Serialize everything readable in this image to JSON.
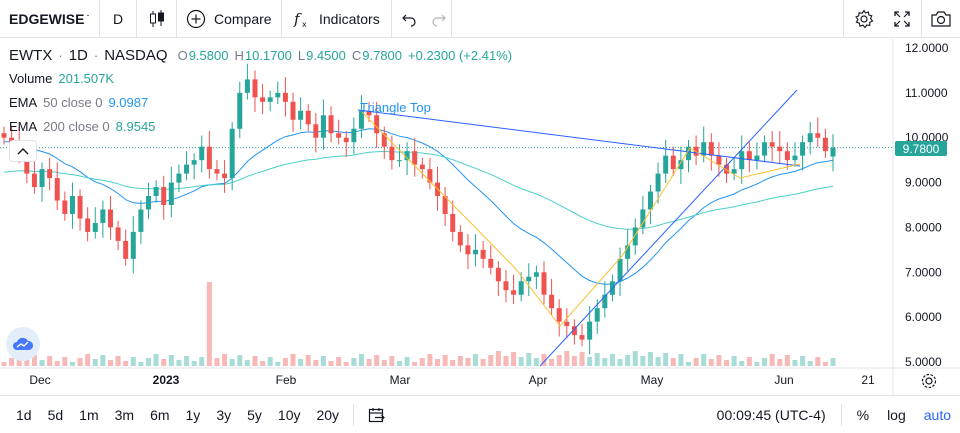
{
  "toolbar": {
    "symbol": "EDGEWISE",
    "interval": "D",
    "chart_type_icon": "candles-icon",
    "compare_label": "Compare",
    "indicators_label": "Indicators",
    "undo_icon": "undo-icon",
    "redo_icon": "redo-icon",
    "settings_icon": "gear-icon",
    "fullscreen_icon": "fullscreen-icon",
    "snapshot_icon": "camera-icon"
  },
  "legend": {
    "symbol": "EWTX",
    "interval": "1D",
    "exchange": "NASDAQ",
    "ohlc": {
      "o_label": "O",
      "o_value": "9.5800",
      "h_label": "H",
      "h_value": "10.1700",
      "l_label": "L",
      "l_value": "9.4500",
      "c_label": "C",
      "c_value": "9.7800",
      "change": "+0.2300 (+2.41%)"
    },
    "volume": {
      "label": "Volume",
      "value": "201.507K"
    },
    "ema50": {
      "label": "EMA",
      "params": "50 close 0",
      "value": "9.0987"
    },
    "ema200": {
      "label": "EMA",
      "params": "200 close 0",
      "value": "8.9545"
    }
  },
  "annotation": {
    "pattern_label": "Triangle Top"
  },
  "price_axis": {
    "ticks": [
      "12.0000",
      "11.0000",
      "10.0000",
      "9.0000",
      "8.0000",
      "7.0000",
      "6.0000",
      "5.0000"
    ],
    "last_price": "9.7800"
  },
  "time_axis": {
    "ticks": [
      "Dec",
      "2023",
      "Feb",
      "Mar",
      "Apr",
      "May",
      "Jun",
      "21"
    ]
  },
  "bottombar": {
    "ranges": [
      "1d",
      "5d",
      "1m",
      "3m",
      "6m",
      "1y",
      "3y",
      "5y",
      "10y",
      "20y"
    ],
    "time": "00:09:45 (UTC-4)",
    "percent_label": "%",
    "log_label": "log",
    "auto_label": "auto"
  },
  "colors": {
    "up": "#26a69a",
    "down": "#ef5350",
    "ema": "#2196f3",
    "pattern": "#fbc02d",
    "trendline": "#2962ff",
    "accent": "#2962ff"
  },
  "chart_data": {
    "type": "candlestick",
    "ylim": [
      5.0,
      12.0
    ],
    "series": [
      {
        "name": "EWTX",
        "close": [
          10.0,
          9.9,
          9.7,
          9.2,
          8.9,
          9.3,
          9.1,
          8.6,
          8.3,
          8.7,
          8.2,
          7.9,
          8.1,
          8.4,
          8.0,
          7.7,
          7.3,
          7.9,
          8.4,
          8.7,
          8.9,
          8.5,
          9.0,
          9.2,
          9.4,
          9.5,
          9.8,
          9.3,
          9.2,
          9.1,
          10.2,
          11.0,
          11.3,
          10.9,
          10.8,
          10.9,
          11.0,
          10.8,
          10.4,
          10.6,
          10.3,
          10.0,
          10.5,
          10.1,
          10.0,
          9.9,
          10.2,
          10.6,
          10.5,
          10.1,
          9.8,
          9.5,
          9.5,
          9.7,
          9.4,
          9.3,
          9.0,
          8.7,
          8.3,
          7.9,
          7.6,
          7.4,
          7.5,
          7.3,
          7.1,
          6.8,
          6.6,
          6.5,
          6.8,
          6.9,
          7.0,
          6.5,
          6.2,
          5.9,
          5.8,
          5.6,
          5.5,
          5.9,
          6.2,
          6.5,
          6.8,
          7.3,
          7.6,
          8.0,
          8.4,
          8.8,
          9.2,
          9.6,
          9.3,
          9.5,
          9.8,
          9.6,
          9.9,
          9.6,
          9.4,
          9.2,
          9.3,
          9.7,
          9.5,
          9.6,
          9.9,
          9.8,
          9.7,
          9.5,
          9.6,
          9.9,
          10.1,
          10.0,
          9.7,
          9.78
        ]
      },
      {
        "name": "EMA 50",
        "last": 9.0987
      },
      {
        "name": "EMA 200",
        "last": 8.9545
      }
    ]
  }
}
